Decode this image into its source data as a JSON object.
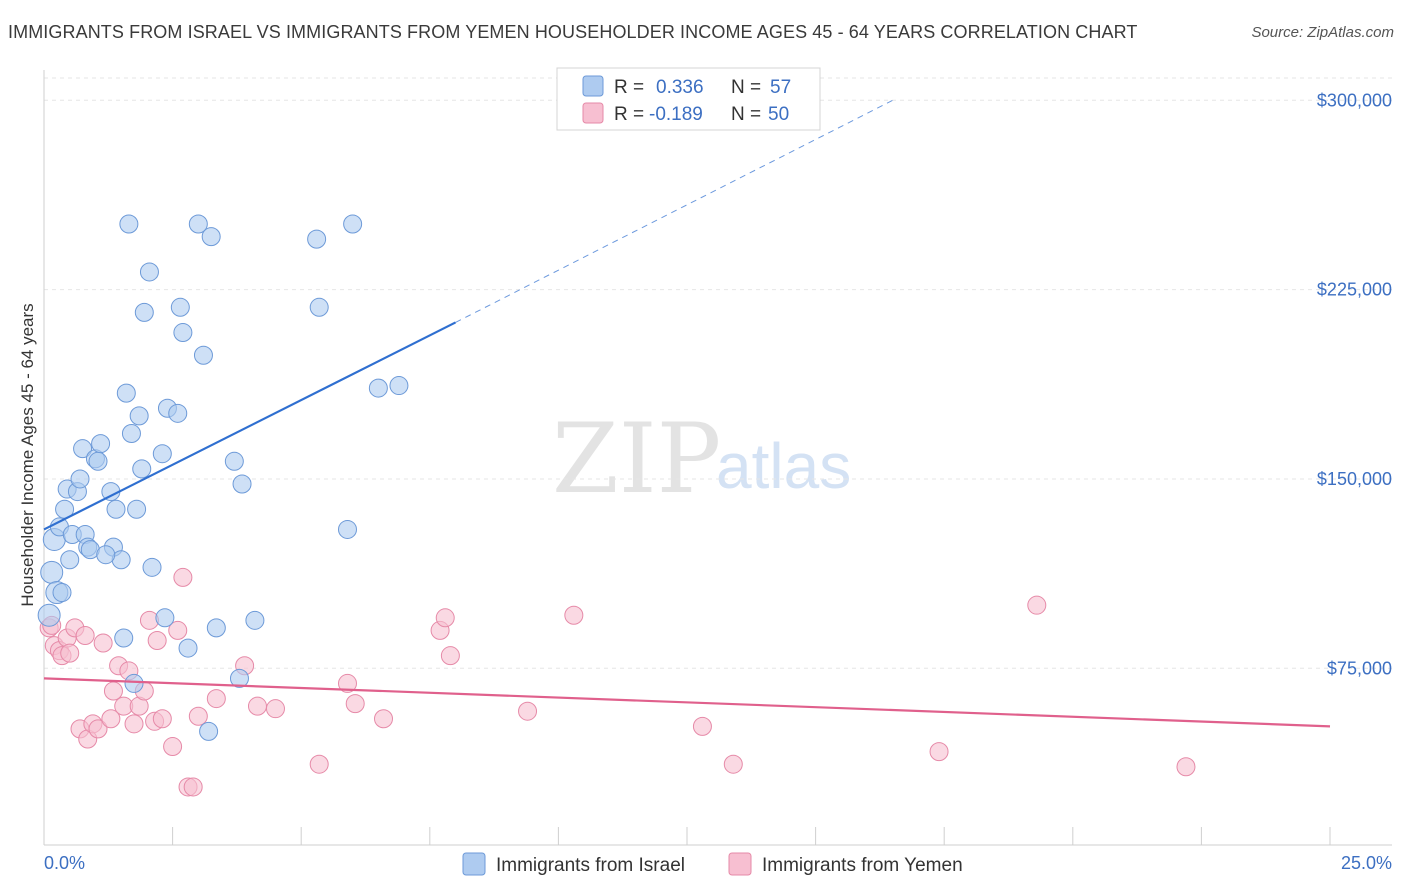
{
  "header": {
    "title": "IMMIGRANTS FROM ISRAEL VS IMMIGRANTS FROM YEMEN HOUSEHOLDER INCOME AGES 45 - 64 YEARS CORRELATION CHART",
    "source": "Source: ZipAtlas.com"
  },
  "watermark": {
    "zip": "ZIP",
    "atlas": "atlas"
  },
  "legend": {
    "israel": {
      "r_label": "R =",
      "r_value": "0.336",
      "n_label": "N =",
      "n_value": "57"
    },
    "yemen": {
      "r_label": "R =",
      "r_value": "-0.189",
      "n_label": "N =",
      "n_value": "50"
    }
  },
  "colors": {
    "israel_fill": "#aecbf0",
    "israel_stroke": "#6d9ad8",
    "israel_line": "#2f6fd0",
    "yemen_fill": "#f7bfd1",
    "yemen_stroke": "#e68aa8",
    "yemen_line": "#e0608c",
    "grid": "#e6e6e6",
    "axis_text": "#3c6fc2"
  },
  "chart_data": {
    "type": "scatter",
    "title": "IMMIGRANTS FROM ISRAEL VS IMMIGRANTS FROM YEMEN HOUSEHOLDER INCOME AGES 45 - 64 YEARS CORRELATION CHART",
    "xlabel": "",
    "ylabel": "Householder Income Ages 45 - 64 years",
    "xlim": [
      0,
      25
    ],
    "ylim": [
      5000,
      312000
    ],
    "x_tick_labels": [
      "0.0%",
      "25.0%"
    ],
    "y_ticks": [
      75000,
      150000,
      225000,
      300000
    ],
    "y_tick_labels": [
      "$75,000",
      "$150,000",
      "$225,000",
      "$300,000"
    ],
    "series": [
      {
        "name": "Immigrants from Israel",
        "points": [
          [
            0.1,
            96000
          ],
          [
            0.15,
            113000
          ],
          [
            0.2,
            126000
          ],
          [
            0.25,
            105000
          ],
          [
            0.3,
            131000
          ],
          [
            0.35,
            105000
          ],
          [
            0.4,
            138000
          ],
          [
            0.45,
            146000
          ],
          [
            0.5,
            118000
          ],
          [
            0.55,
            128000
          ],
          [
            0.65,
            145000
          ],
          [
            0.7,
            150000
          ],
          [
            0.75,
            162000
          ],
          [
            0.8,
            128000
          ],
          [
            0.85,
            123000
          ],
          [
            0.9,
            122000
          ],
          [
            1.0,
            158000
          ],
          [
            1.05,
            157000
          ],
          [
            1.1,
            164000
          ],
          [
            1.3,
            145000
          ],
          [
            1.35,
            123000
          ],
          [
            1.4,
            138000
          ],
          [
            1.5,
            118000
          ],
          [
            1.55,
            87000
          ],
          [
            1.6,
            184000
          ],
          [
            1.7,
            168000
          ],
          [
            1.8,
            138000
          ],
          [
            1.85,
            175000
          ],
          [
            1.9,
            154000
          ],
          [
            1.95,
            216000
          ],
          [
            2.05,
            232000
          ],
          [
            2.1,
            115000
          ],
          [
            2.3,
            160000
          ],
          [
            2.35,
            95000
          ],
          [
            2.4,
            178000
          ],
          [
            2.6,
            176000
          ],
          [
            2.65,
            218000
          ],
          [
            2.7,
            208000
          ],
          [
            2.8,
            83000
          ],
          [
            3.0,
            251000
          ],
          [
            3.1,
            199000
          ],
          [
            3.2,
            50000
          ],
          [
            3.25,
            246000
          ],
          [
            3.35,
            91000
          ],
          [
            3.7,
            157000
          ],
          [
            3.8,
            71000
          ],
          [
            3.85,
            148000
          ],
          [
            4.1,
            94000
          ],
          [
            5.3,
            245000
          ],
          [
            5.35,
            218000
          ],
          [
            5.9,
            130000
          ],
          [
            6.0,
            251000
          ],
          [
            6.5,
            186000
          ],
          [
            6.9,
            187000
          ],
          [
            1.75,
            69000
          ],
          [
            1.65,
            251000
          ],
          [
            1.2,
            120000
          ]
        ]
      },
      {
        "name": "Immigrants from Yemen",
        "points": [
          [
            0.1,
            91000
          ],
          [
            0.15,
            92000
          ],
          [
            0.2,
            84000
          ],
          [
            0.3,
            82000
          ],
          [
            0.35,
            80000
          ],
          [
            0.45,
            87000
          ],
          [
            0.5,
            81000
          ],
          [
            0.6,
            91000
          ],
          [
            0.7,
            51000
          ],
          [
            0.8,
            88000
          ],
          [
            0.85,
            47000
          ],
          [
            0.95,
            53000
          ],
          [
            1.05,
            51000
          ],
          [
            1.15,
            85000
          ],
          [
            1.3,
            55000
          ],
          [
            1.35,
            66000
          ],
          [
            1.45,
            76000
          ],
          [
            1.55,
            60000
          ],
          [
            1.65,
            74000
          ],
          [
            1.75,
            53000
          ],
          [
            1.85,
            60000
          ],
          [
            1.95,
            66000
          ],
          [
            2.05,
            94000
          ],
          [
            2.15,
            54000
          ],
          [
            2.2,
            86000
          ],
          [
            2.3,
            55000
          ],
          [
            2.5,
            44000
          ],
          [
            2.6,
            90000
          ],
          [
            2.7,
            111000
          ],
          [
            2.8,
            28000
          ],
          [
            2.9,
            28000
          ],
          [
            3.0,
            56000
          ],
          [
            3.35,
            63000
          ],
          [
            3.9,
            76000
          ],
          [
            4.15,
            60000
          ],
          [
            4.5,
            59000
          ],
          [
            5.35,
            37000
          ],
          [
            5.9,
            69000
          ],
          [
            6.05,
            61000
          ],
          [
            6.6,
            55000
          ],
          [
            7.7,
            90000
          ],
          [
            7.8,
            95000
          ],
          [
            7.9,
            80000
          ],
          [
            9.4,
            58000
          ],
          [
            10.3,
            96000
          ],
          [
            12.8,
            52000
          ],
          [
            13.4,
            37000
          ],
          [
            17.4,
            42000
          ],
          [
            19.3,
            100000
          ],
          [
            22.2,
            36000
          ]
        ]
      }
    ],
    "trend_lines": [
      {
        "series": "Immigrants from Israel",
        "solid": [
          [
            0,
            130000
          ],
          [
            8.0,
            212000
          ]
        ],
        "dashed": [
          [
            8.0,
            212000
          ],
          [
            16.5,
            300000
          ]
        ]
      },
      {
        "series": "Immigrants from Yemen",
        "solid": [
          [
            0,
            71000
          ],
          [
            25,
            52000
          ]
        ]
      }
    ]
  },
  "bottom_legend": [
    {
      "label": "Immigrants from Israel"
    },
    {
      "label": "Immigrants from Yemen"
    }
  ]
}
